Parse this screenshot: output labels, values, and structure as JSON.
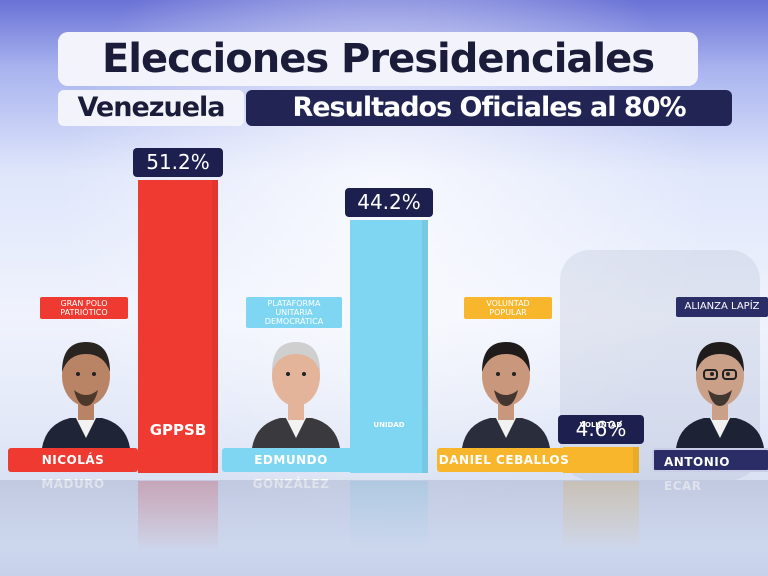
{
  "header": {
    "title": "Elecciones Presidenciales",
    "country": "Venezuela",
    "subtitle": "Resultados Oficiales al 80%"
  },
  "chart_data": {
    "type": "bar",
    "categories": [
      "NICOLÁS MADURO",
      "EDMUNDO GONZÁLEZ",
      "DANIEL CEBALLOS",
      "ANTONIO ECAR"
    ],
    "values": [
      51.2,
      44.2,
      4.6,
      null
    ],
    "value_labels": [
      "51.2%",
      "44.2%",
      "4.6%",
      ""
    ],
    "parties": [
      "GRAN POLO PATRIÓTICO",
      "PLATAFORMA UNITARIA DEMOCRÁTICA",
      "VOLUNTAD POPULAR",
      "ALIANZA LAPÍZ"
    ],
    "logos": [
      "GPPSB",
      "UNIDAD",
      "VOLUNTAD",
      ""
    ],
    "title": "Elecciones Presidenciales",
    "subtitle": "Resultados Oficiales al 80%",
    "ylim": [
      0,
      55
    ],
    "colors": [
      "#ef3a31",
      "#7fd6f2",
      "#f8b62c",
      "#2a2d66"
    ],
    "grid": false
  }
}
